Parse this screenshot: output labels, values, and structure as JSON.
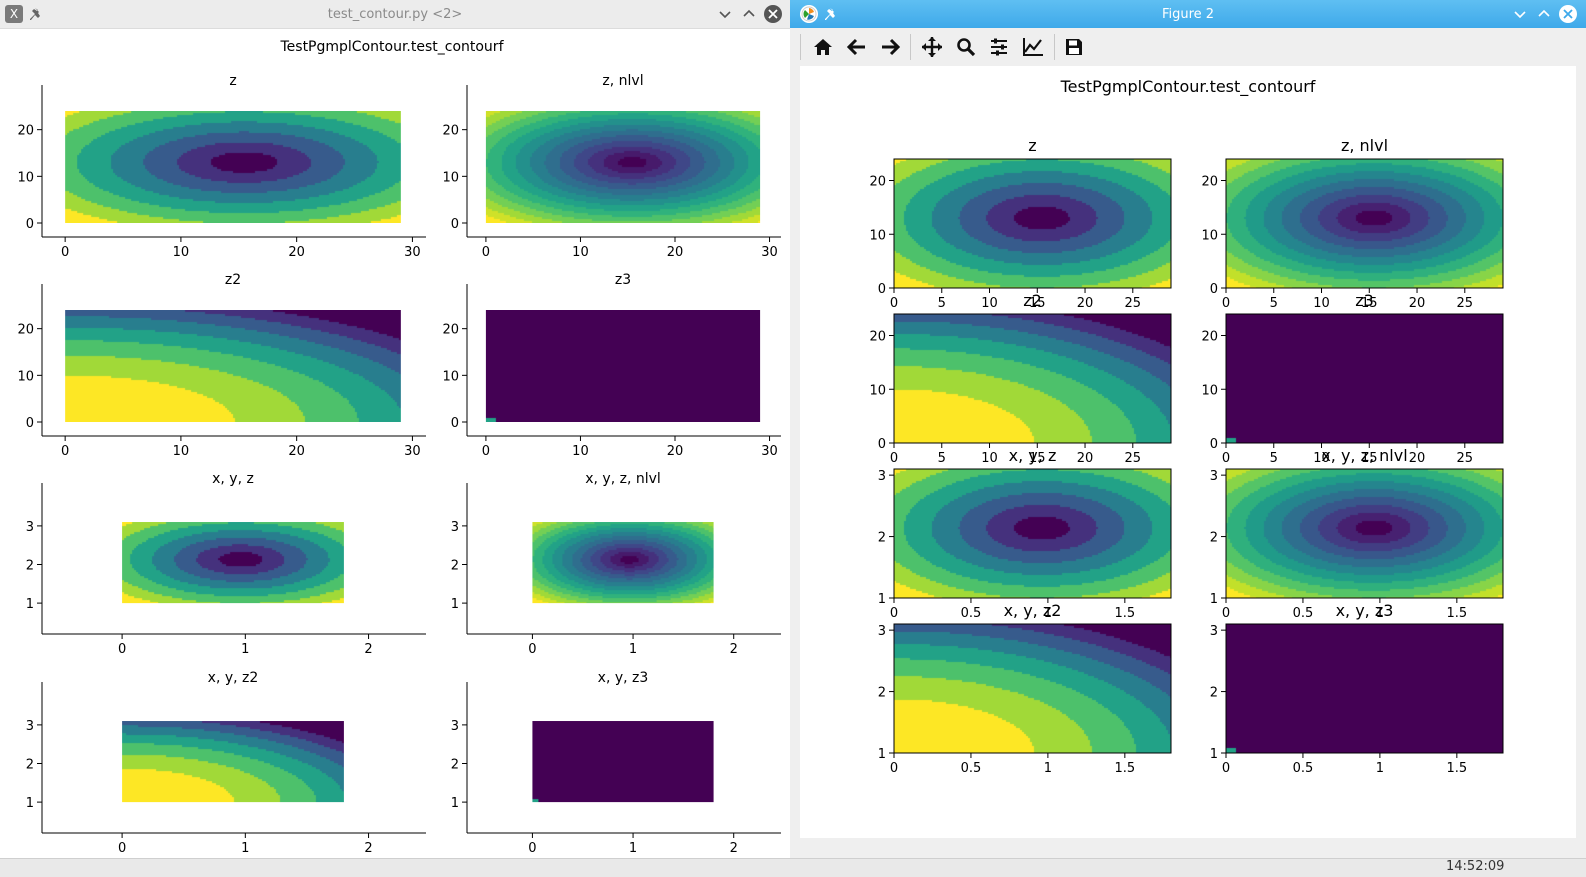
{
  "left_window": {
    "title": "test_contour.py <2>",
    "suptitle": "TestPgmplContour.test_contourf",
    "icons": [
      "app-icon",
      "pin-icon",
      "minimize-icon",
      "maximize-icon",
      "close-icon"
    ]
  },
  "right_window": {
    "title": "Figure 2",
    "suptitle": "TestPgmplContour.test_contourf",
    "icons": [
      "app-icon",
      "pin-icon",
      "minimize-icon",
      "close-icon"
    ],
    "toolbar": [
      "home-icon",
      "back-icon",
      "forward-icon",
      "pan-icon",
      "zoom-icon",
      "configure-subplots-icon",
      "edit-axes-icon",
      "save-icon"
    ]
  },
  "taskbar": {
    "clock": "14:52:09"
  },
  "colors": {
    "viridis": [
      "#440154",
      "#482878",
      "#3e4989",
      "#31688e",
      "#26828e",
      "#1f9e89",
      "#35b779",
      "#6ece58",
      "#b5de2b",
      "#fde725"
    ]
  },
  "chart_data": [
    {
      "id": "left-figure",
      "type": "heatmap",
      "title": "TestPgmplContour.test_contourf",
      "panels": [
        {
          "title": "z",
          "xlim": [
            -2,
            31
          ],
          "ylim": [
            -3,
            27
          ],
          "xticks": [
            0,
            10,
            20,
            30
          ],
          "yticks": [
            0,
            10,
            20
          ],
          "extent": [
            0,
            29,
            0,
            24
          ],
          "field": "z",
          "levels": 8
        },
        {
          "title": "z, nlvl",
          "xlim": [
            -2,
            31
          ],
          "ylim": [
            -3,
            27
          ],
          "xticks": [
            0,
            10,
            20,
            30
          ],
          "yticks": [
            0,
            10,
            20
          ],
          "extent": [
            0,
            29,
            0,
            24
          ],
          "field": "z",
          "levels": 15
        },
        {
          "title": "z2",
          "xlim": [
            -2,
            31
          ],
          "ylim": [
            -3,
            27
          ],
          "xticks": [
            0,
            10,
            20,
            30
          ],
          "yticks": [
            0,
            10,
            20
          ],
          "extent": [
            0,
            29,
            0,
            24
          ],
          "field": "z2",
          "levels": 8
        },
        {
          "title": "z3",
          "xlim": [
            -2,
            31
          ],
          "ylim": [
            -3,
            27
          ],
          "xticks": [
            0,
            10,
            20,
            30
          ],
          "yticks": [
            0,
            10,
            20
          ],
          "extent": [
            0,
            29,
            0,
            24
          ],
          "field": "z3",
          "levels": 8
        },
        {
          "title": "x, y, z",
          "xlim": [
            -0.65,
            2.45
          ],
          "ylim": [
            0.2,
            3.8
          ],
          "xticks": [
            0,
            1,
            2
          ],
          "yticks": [
            1,
            2,
            3
          ],
          "extent": [
            0,
            1.8,
            1,
            3.1
          ],
          "field": "z",
          "levels": 8
        },
        {
          "title": "x, y, z, nlvl",
          "xlim": [
            -0.65,
            2.45
          ],
          "ylim": [
            0.2,
            3.8
          ],
          "xticks": [
            0,
            1,
            2
          ],
          "yticks": [
            1,
            2,
            3
          ],
          "extent": [
            0,
            1.8,
            1,
            3.1
          ],
          "field": "z",
          "levels": 15
        },
        {
          "title": "x, y, z2",
          "xlim": [
            -0.65,
            2.45
          ],
          "ylim": [
            0.2,
            3.8
          ],
          "xticks": [
            0,
            1,
            2
          ],
          "yticks": [
            1,
            2,
            3
          ],
          "extent": [
            0,
            1.8,
            1,
            3.1
          ],
          "field": "z2",
          "levels": 8
        },
        {
          "title": "x, y, z3",
          "xlim": [
            -0.65,
            2.45
          ],
          "ylim": [
            0.2,
            3.8
          ],
          "xticks": [
            0,
            1,
            2
          ],
          "yticks": [
            1,
            2,
            3
          ],
          "extent": [
            0,
            1.8,
            1,
            3.1
          ],
          "field": "z3",
          "levels": 8
        }
      ]
    },
    {
      "id": "right-figure",
      "type": "heatmap",
      "title": "TestPgmplContour.test_contourf",
      "panels": [
        {
          "title": "z",
          "xlim": [
            0,
            29
          ],
          "ylim": [
            0,
            24
          ],
          "xticks": [
            0,
            5,
            10,
            15,
            20,
            25
          ],
          "yticks": [
            0,
            10,
            20
          ],
          "field": "z",
          "levels": 8
        },
        {
          "title": "z, nlvl",
          "xlim": [
            0,
            29
          ],
          "ylim": [
            0,
            24
          ],
          "xticks": [
            0,
            5,
            10,
            15,
            20,
            25
          ],
          "yticks": [
            0,
            10,
            20
          ],
          "field": "z",
          "levels": 12
        },
        {
          "title": "z2",
          "xlim": [
            0,
            29
          ],
          "ylim": [
            0,
            24
          ],
          "xticks": [
            0,
            5,
            10,
            15,
            20,
            25
          ],
          "yticks": [
            0,
            10,
            20
          ],
          "field": "z2",
          "levels": 8
        },
        {
          "title": "z3",
          "xlim": [
            0,
            29
          ],
          "ylim": [
            0,
            24
          ],
          "xticks": [
            0,
            5,
            10,
            15,
            20,
            25
          ],
          "yticks": [
            0,
            10,
            20
          ],
          "field": "z3",
          "levels": 8
        },
        {
          "title": "x, y, z",
          "xlim": [
            0,
            1.8
          ],
          "ylim": [
            1,
            3.1
          ],
          "xticks": [
            0.0,
            0.5,
            1.0,
            1.5
          ],
          "yticks": [
            1,
            2,
            3
          ],
          "field": "z",
          "levels": 8
        },
        {
          "title": "x, y, z, nlvl",
          "xlim": [
            0,
            1.8
          ],
          "ylim": [
            1,
            3.1
          ],
          "xticks": [
            0.0,
            0.5,
            1.0,
            1.5
          ],
          "yticks": [
            1,
            2,
            3
          ],
          "field": "z",
          "levels": 12
        },
        {
          "title": "x, y, z2",
          "xlim": [
            0,
            1.8
          ],
          "ylim": [
            1,
            3.1
          ],
          "xticks": [
            0.0,
            0.5,
            1.0,
            1.5
          ],
          "yticks": [
            1,
            2,
            3
          ],
          "field": "z2",
          "levels": 8
        },
        {
          "title": "x, y, z3",
          "xlim": [
            0,
            1.8
          ],
          "ylim": [
            1,
            3.1
          ],
          "xticks": [
            0.0,
            0.5,
            1.0,
            1.5
          ],
          "yticks": [
            1,
            2,
            3
          ],
          "field": "z3",
          "levels": 8
        }
      ]
    }
  ]
}
